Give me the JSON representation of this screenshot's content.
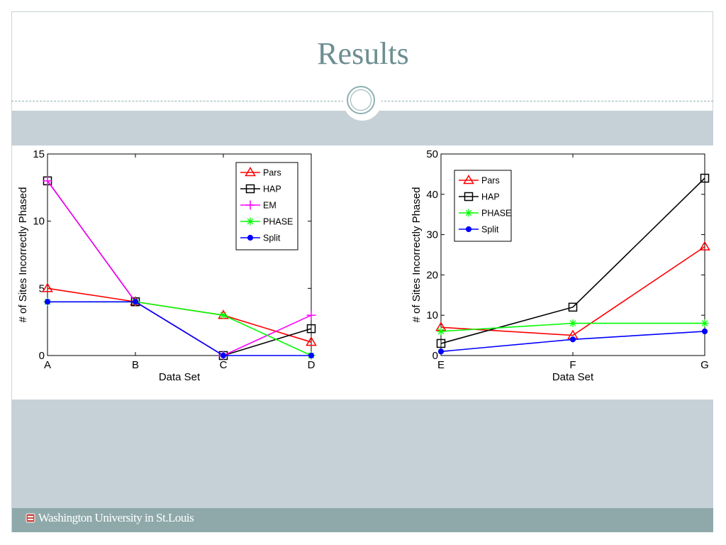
{
  "slide": {
    "title": "Results",
    "footer": "Washington University in St.Louis",
    "colors": {
      "title": "#6d8e92",
      "band": "#c5d1d6",
      "footer": "#8fa9ab",
      "rule": "#8fb0b3"
    }
  },
  "chart_data": [
    {
      "type": "line",
      "xlabel": "Data Set",
      "ylabel": "# of Sites Incorrectly Phased",
      "categories": [
        "A",
        "B",
        "C",
        "D"
      ],
      "ylim": [
        0,
        15
      ],
      "yticks": [
        0,
        5,
        10,
        15
      ],
      "legend_position": "top-right",
      "series": [
        {
          "name": "Pars",
          "color": "#ff0000",
          "marker": "triangle",
          "values": [
            5,
            4,
            3,
            1
          ]
        },
        {
          "name": "HAP",
          "color": "#000000",
          "marker": "square",
          "values": [
            13,
            4,
            0,
            2
          ]
        },
        {
          "name": "EM",
          "color": "#ff00ff",
          "marker": "plus",
          "values": [
            13,
            4,
            0,
            3
          ]
        },
        {
          "name": "PHASE",
          "color": "#00ff00",
          "marker": "star",
          "values": [
            4,
            4,
            3,
            0
          ]
        },
        {
          "name": "Split",
          "color": "#0000ff",
          "marker": "dot",
          "values": [
            4,
            4,
            0,
            0
          ]
        }
      ]
    },
    {
      "type": "line",
      "xlabel": "Data Set",
      "ylabel": "# of Sites Incorrectly Phased",
      "categories": [
        "E",
        "F",
        "G"
      ],
      "ylim": [
        0,
        50
      ],
      "yticks": [
        0,
        10,
        20,
        30,
        40,
        50
      ],
      "legend_position": "top-left",
      "series": [
        {
          "name": "Pars",
          "color": "#ff0000",
          "marker": "triangle",
          "values": [
            7,
            5,
            27
          ]
        },
        {
          "name": "HAP",
          "color": "#000000",
          "marker": "square",
          "values": [
            3,
            12,
            44
          ]
        },
        {
          "name": "PHASE",
          "color": "#00ff00",
          "marker": "star",
          "values": [
            6,
            8,
            8
          ]
        },
        {
          "name": "Split",
          "color": "#0000ff",
          "marker": "dot",
          "values": [
            1,
            4,
            6
          ]
        }
      ]
    }
  ]
}
